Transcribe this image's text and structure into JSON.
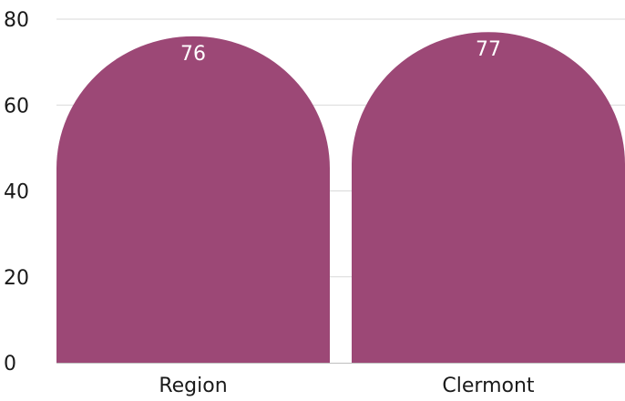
{
  "chart_data": {
    "type": "bar",
    "title": "",
    "xlabel": "",
    "ylabel": "",
    "categories": [
      "Region",
      "Clermont"
    ],
    "values": [
      76,
      77
    ],
    "data_labels": [
      "76",
      "77"
    ],
    "ylim": [
      0,
      80
    ],
    "yticks": [
      0,
      20,
      40,
      60,
      80
    ],
    "ytick_labels": [
      "0",
      "20",
      "40",
      "60",
      "80"
    ],
    "grid": true,
    "legend": "none",
    "colors": {
      "bar": "#9c4876",
      "grid": "#d9d9d9",
      "text": "#1a1a1a",
      "data_label": "#ffffff"
    }
  }
}
